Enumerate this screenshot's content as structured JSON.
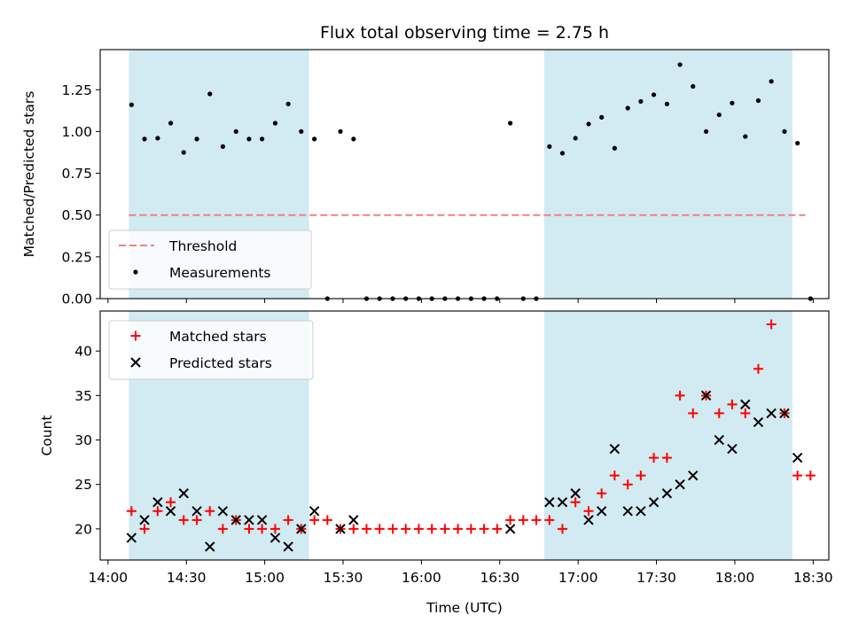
{
  "chart_data": {
    "type": "scatter",
    "title": "Flux total observing time = 2.75 h",
    "colors": {
      "shade": "#add8e6",
      "threshold": "#f08080",
      "measurements": "#000000",
      "matched": "#ff0000",
      "predicted": "#000000"
    },
    "shaded_regions_hours": [
      [
        14.133,
        15.283
      ],
      [
        16.783,
        18.367
      ]
    ],
    "x_axis": {
      "label": "Time (UTC)",
      "range_hours": [
        13.95,
        18.6
      ],
      "ticks": [
        {
          "v": 14.0,
          "label": "14:00"
        },
        {
          "v": 14.5,
          "label": "14:30"
        },
        {
          "v": 15.0,
          "label": "15:00"
        },
        {
          "v": 15.5,
          "label": "15:30"
        },
        {
          "v": 16.0,
          "label": "16:00"
        },
        {
          "v": 16.5,
          "label": "16:30"
        },
        {
          "v": 17.0,
          "label": "17:00"
        },
        {
          "v": 17.5,
          "label": "17:30"
        },
        {
          "v": 18.0,
          "label": "18:00"
        },
        {
          "v": 18.5,
          "label": "18:30"
        }
      ]
    },
    "top": {
      "ylabel": "Matched/Predicted stars",
      "ylim": [
        0.0,
        1.49
      ],
      "yticks": [
        {
          "v": 0.0,
          "label": "0.00"
        },
        {
          "v": 0.25,
          "label": "0.25"
        },
        {
          "v": 0.5,
          "label": "0.50"
        },
        {
          "v": 0.75,
          "label": "0.75"
        },
        {
          "v": 1.0,
          "label": "1.00"
        },
        {
          "v": 1.25,
          "label": "1.25"
        }
      ],
      "threshold": {
        "value": 0.5,
        "x_range_hours": [
          14.133,
          18.45
        ],
        "label": "Threshold"
      },
      "measurements_label": "Measurements",
      "measurements": [
        [
          14.15,
          1.16
        ],
        [
          14.233,
          0.955
        ],
        [
          14.317,
          0.96
        ],
        [
          14.4,
          1.05
        ],
        [
          14.483,
          0.875
        ],
        [
          14.567,
          0.955
        ],
        [
          14.65,
          1.225
        ],
        [
          14.733,
          0.91
        ],
        [
          14.817,
          1.0
        ],
        [
          14.9,
          0.955
        ],
        [
          14.983,
          0.955
        ],
        [
          15.067,
          1.05
        ],
        [
          15.15,
          1.165
        ],
        [
          15.233,
          1.0
        ],
        [
          15.317,
          0.955
        ],
        [
          15.4,
          0.0
        ],
        [
          15.483,
          1.0
        ],
        [
          15.567,
          0.955
        ],
        [
          15.65,
          0.0
        ],
        [
          15.733,
          0.0
        ],
        [
          15.817,
          0.0
        ],
        [
          15.9,
          0.0
        ],
        [
          15.983,
          0.0
        ],
        [
          16.067,
          0.0
        ],
        [
          16.15,
          0.0
        ],
        [
          16.233,
          0.0
        ],
        [
          16.317,
          0.0
        ],
        [
          16.4,
          0.0
        ],
        [
          16.483,
          0.0
        ],
        [
          16.567,
          1.05
        ],
        [
          16.65,
          0.0
        ],
        [
          16.733,
          0.0
        ],
        [
          16.817,
          0.91
        ],
        [
          16.9,
          0.87
        ],
        [
          16.983,
          0.96
        ],
        [
          17.067,
          1.045
        ],
        [
          17.15,
          1.085
        ],
        [
          17.233,
          0.9
        ],
        [
          17.317,
          1.14
        ],
        [
          17.4,
          1.18
        ],
        [
          17.483,
          1.22
        ],
        [
          17.567,
          1.165
        ],
        [
          17.65,
          1.4
        ],
        [
          17.733,
          1.27
        ],
        [
          17.817,
          1.0
        ],
        [
          17.9,
          1.1
        ],
        [
          17.983,
          1.17
        ],
        [
          18.067,
          0.97
        ],
        [
          18.15,
          1.185
        ],
        [
          18.233,
          1.3
        ],
        [
          18.317,
          1.0
        ],
        [
          18.4,
          0.93
        ],
        [
          18.483,
          0.0
        ]
      ]
    },
    "bottom": {
      "ylabel": "Count",
      "ylim": [
        16.5,
        44.5
      ],
      "yticks": [
        {
          "v": 20,
          "label": "20"
        },
        {
          "v": 25,
          "label": "25"
        },
        {
          "v": 30,
          "label": "30"
        },
        {
          "v": 35,
          "label": "35"
        },
        {
          "v": 40,
          "label": "40"
        }
      ],
      "series": [
        {
          "name": "Matched stars",
          "marker": "+",
          "points": [
            [
              14.15,
              22
            ],
            [
              14.233,
              20
            ],
            [
              14.317,
              22
            ],
            [
              14.4,
              23
            ],
            [
              14.483,
              21
            ],
            [
              14.567,
              21
            ],
            [
              14.65,
              22
            ],
            [
              14.733,
              20
            ],
            [
              14.817,
              21
            ],
            [
              14.9,
              20
            ],
            [
              14.983,
              20
            ],
            [
              15.067,
              20
            ],
            [
              15.15,
              21
            ],
            [
              15.233,
              20
            ],
            [
              15.317,
              21
            ],
            [
              15.4,
              21
            ],
            [
              15.483,
              20
            ],
            [
              15.567,
              20
            ],
            [
              15.65,
              20
            ],
            [
              15.733,
              20
            ],
            [
              15.817,
              20
            ],
            [
              15.9,
              20
            ],
            [
              15.983,
              20
            ],
            [
              16.067,
              20
            ],
            [
              16.15,
              20
            ],
            [
              16.233,
              20
            ],
            [
              16.317,
              20
            ],
            [
              16.4,
              20
            ],
            [
              16.483,
              20
            ],
            [
              16.567,
              21
            ],
            [
              16.65,
              21
            ],
            [
              16.733,
              21
            ],
            [
              16.817,
              21
            ],
            [
              16.9,
              20
            ],
            [
              16.983,
              23
            ],
            [
              17.067,
              22
            ],
            [
              17.15,
              24
            ],
            [
              17.233,
              26
            ],
            [
              17.317,
              25
            ],
            [
              17.4,
              26
            ],
            [
              17.483,
              28
            ],
            [
              17.567,
              28
            ],
            [
              17.65,
              35
            ],
            [
              17.733,
              33
            ],
            [
              17.817,
              35
            ],
            [
              17.9,
              33
            ],
            [
              17.983,
              34
            ],
            [
              18.067,
              33
            ],
            [
              18.15,
              38
            ],
            [
              18.233,
              43
            ],
            [
              18.317,
              33
            ],
            [
              18.4,
              26
            ],
            [
              18.483,
              26
            ]
          ]
        },
        {
          "name": "Predicted stars",
          "marker": "x",
          "points": [
            [
              14.15,
              19
            ],
            [
              14.233,
              21
            ],
            [
              14.317,
              23
            ],
            [
              14.4,
              22
            ],
            [
              14.483,
              24
            ],
            [
              14.567,
              22
            ],
            [
              14.65,
              18
            ],
            [
              14.733,
              22
            ],
            [
              14.817,
              21
            ],
            [
              14.9,
              21
            ],
            [
              14.983,
              21
            ],
            [
              15.067,
              19
            ],
            [
              15.15,
              18
            ],
            [
              15.233,
              20
            ],
            [
              15.317,
              22
            ],
            [
              15.483,
              20
            ],
            [
              15.567,
              21
            ],
            [
              16.567,
              20
            ],
            [
              16.817,
              23
            ],
            [
              16.9,
              23
            ],
            [
              16.983,
              24
            ],
            [
              17.067,
              21
            ],
            [
              17.15,
              22
            ],
            [
              17.233,
              29
            ],
            [
              17.317,
              22
            ],
            [
              17.4,
              22
            ],
            [
              17.483,
              23
            ],
            [
              17.567,
              24
            ],
            [
              17.65,
              25
            ],
            [
              17.733,
              26
            ],
            [
              17.817,
              35
            ],
            [
              17.9,
              30
            ],
            [
              17.983,
              29
            ],
            [
              18.067,
              34
            ],
            [
              18.15,
              32
            ],
            [
              18.233,
              33
            ],
            [
              18.317,
              33
            ],
            [
              18.4,
              28
            ]
          ]
        }
      ]
    }
  }
}
